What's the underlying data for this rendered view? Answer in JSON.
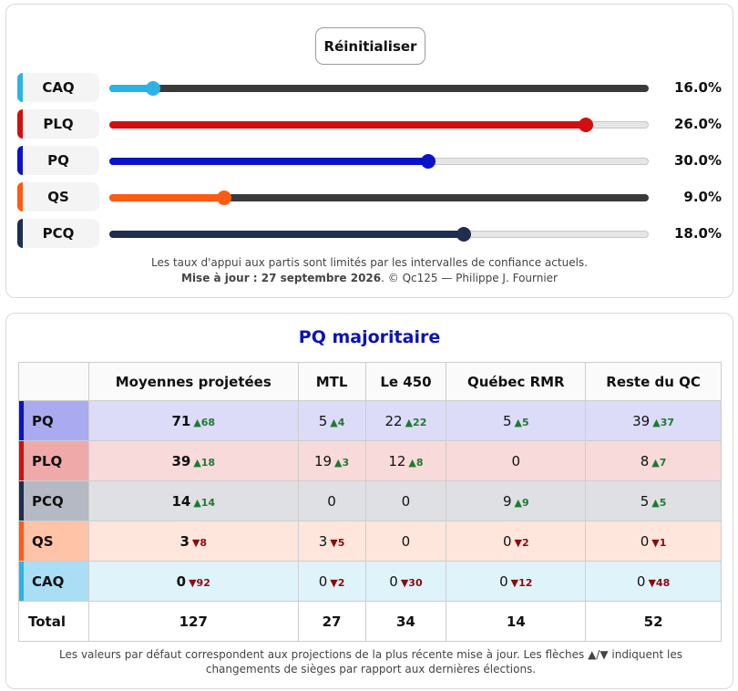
{
  "controls": {
    "reset_label": "Réinitialiser"
  },
  "parties_sliders": [
    {
      "name": "CAQ",
      "color": "#2bb3e8",
      "value_text": "16.0%",
      "fill_fraction": 0.079,
      "track_style": "dark"
    },
    {
      "name": "PLQ",
      "color": "#d10f0f",
      "value_text": "26.0%",
      "fill_fraction": 0.884,
      "track_style": "light"
    },
    {
      "name": "PQ",
      "color": "#0a13c8",
      "value_text": "30.0%",
      "fill_fraction": 0.592,
      "track_style": "light"
    },
    {
      "name": "QS",
      "color": "#ff5a14",
      "value_text": "9.0%",
      "fill_fraction": 0.212,
      "track_style": "dark"
    },
    {
      "name": "PCQ",
      "color": "#1f2d4e",
      "value_text": "18.0%",
      "fill_fraction": 0.658,
      "track_style": "light"
    }
  ],
  "notes": {
    "line1": "Les taux d'appui aux partis sont limités par les intervalles de confiance actuels.",
    "update_label": "Mise à jour : 27 septembre 2026",
    "credit": ". © Qc125 — Philippe J. Fournier"
  },
  "result": {
    "title": "PQ majoritaire",
    "title_color": "#0a13b4",
    "headers": [
      "",
      "Moyennes projetées",
      "MTL",
      "Le 450",
      "Québec RMR",
      "Reste du QC"
    ],
    "rows": [
      {
        "party": "PQ",
        "accent": "#0a13c8",
        "row_bg": "#dcdcf9",
        "label_bg": "#a9aaf0",
        "cells": [
          {
            "v": "71",
            "d": "▲68",
            "dir": "up"
          },
          {
            "v": "5",
            "d": "▲4",
            "dir": "up"
          },
          {
            "v": "22",
            "d": "▲22",
            "dir": "up"
          },
          {
            "v": "5",
            "d": "▲5",
            "dir": "up"
          },
          {
            "v": "39",
            "d": "▲37",
            "dir": "up"
          }
        ]
      },
      {
        "party": "PLQ",
        "accent": "#d10f0f",
        "row_bg": "#f8dada",
        "label_bg": "#f0a9a9",
        "cells": [
          {
            "v": "39",
            "d": "▲18",
            "dir": "up"
          },
          {
            "v": "19",
            "d": "▲3",
            "dir": "up"
          },
          {
            "v": "12",
            "d": "▲8",
            "dir": "up"
          },
          {
            "v": "0",
            "d": "",
            "dir": ""
          },
          {
            "v": "8",
            "d": "▲7",
            "dir": "up"
          }
        ]
      },
      {
        "party": "PCQ",
        "accent": "#1f2d4e",
        "row_bg": "#dfe0e4",
        "label_bg": "#b4b9c4",
        "cells": [
          {
            "v": "14",
            "d": "▲14",
            "dir": "up"
          },
          {
            "v": "0",
            "d": "",
            "dir": ""
          },
          {
            "v": "0",
            "d": "",
            "dir": ""
          },
          {
            "v": "9",
            "d": "▲9",
            "dir": "up"
          },
          {
            "v": "5",
            "d": "▲5",
            "dir": "up"
          }
        ]
      },
      {
        "party": "QS",
        "accent": "#ff5a14",
        "row_bg": "#ffe6dc",
        "label_bg": "#ffc3a8",
        "cells": [
          {
            "v": "3",
            "d": "▼8",
            "dir": "down"
          },
          {
            "v": "3",
            "d": "▼5",
            "dir": "down"
          },
          {
            "v": "0",
            "d": "",
            "dir": ""
          },
          {
            "v": "0",
            "d": "▼2",
            "dir": "down"
          },
          {
            "v": "0",
            "d": "▼1",
            "dir": "down"
          }
        ]
      },
      {
        "party": "CAQ",
        "accent": "#2bb3e8",
        "row_bg": "#dff3fb",
        "label_bg": "#a9def4",
        "cells": [
          {
            "v": "0",
            "d": "▼92",
            "dir": "down"
          },
          {
            "v": "0",
            "d": "▼2",
            "dir": "down"
          },
          {
            "v": "0",
            "d": "▼30",
            "dir": "down"
          },
          {
            "v": "0",
            "d": "▼12",
            "dir": "down"
          },
          {
            "v": "0",
            "d": "▼48",
            "dir": "down"
          }
        ]
      }
    ],
    "total_label": "Total",
    "totals": [
      "127",
      "27",
      "34",
      "14",
      "52"
    ]
  },
  "footnote": "Les valeurs par défaut correspondent aux projections de la plus récente mise à jour. Les flèches ▲/▼ indiquent les changements de sièges par rapport aux dernières élections."
}
